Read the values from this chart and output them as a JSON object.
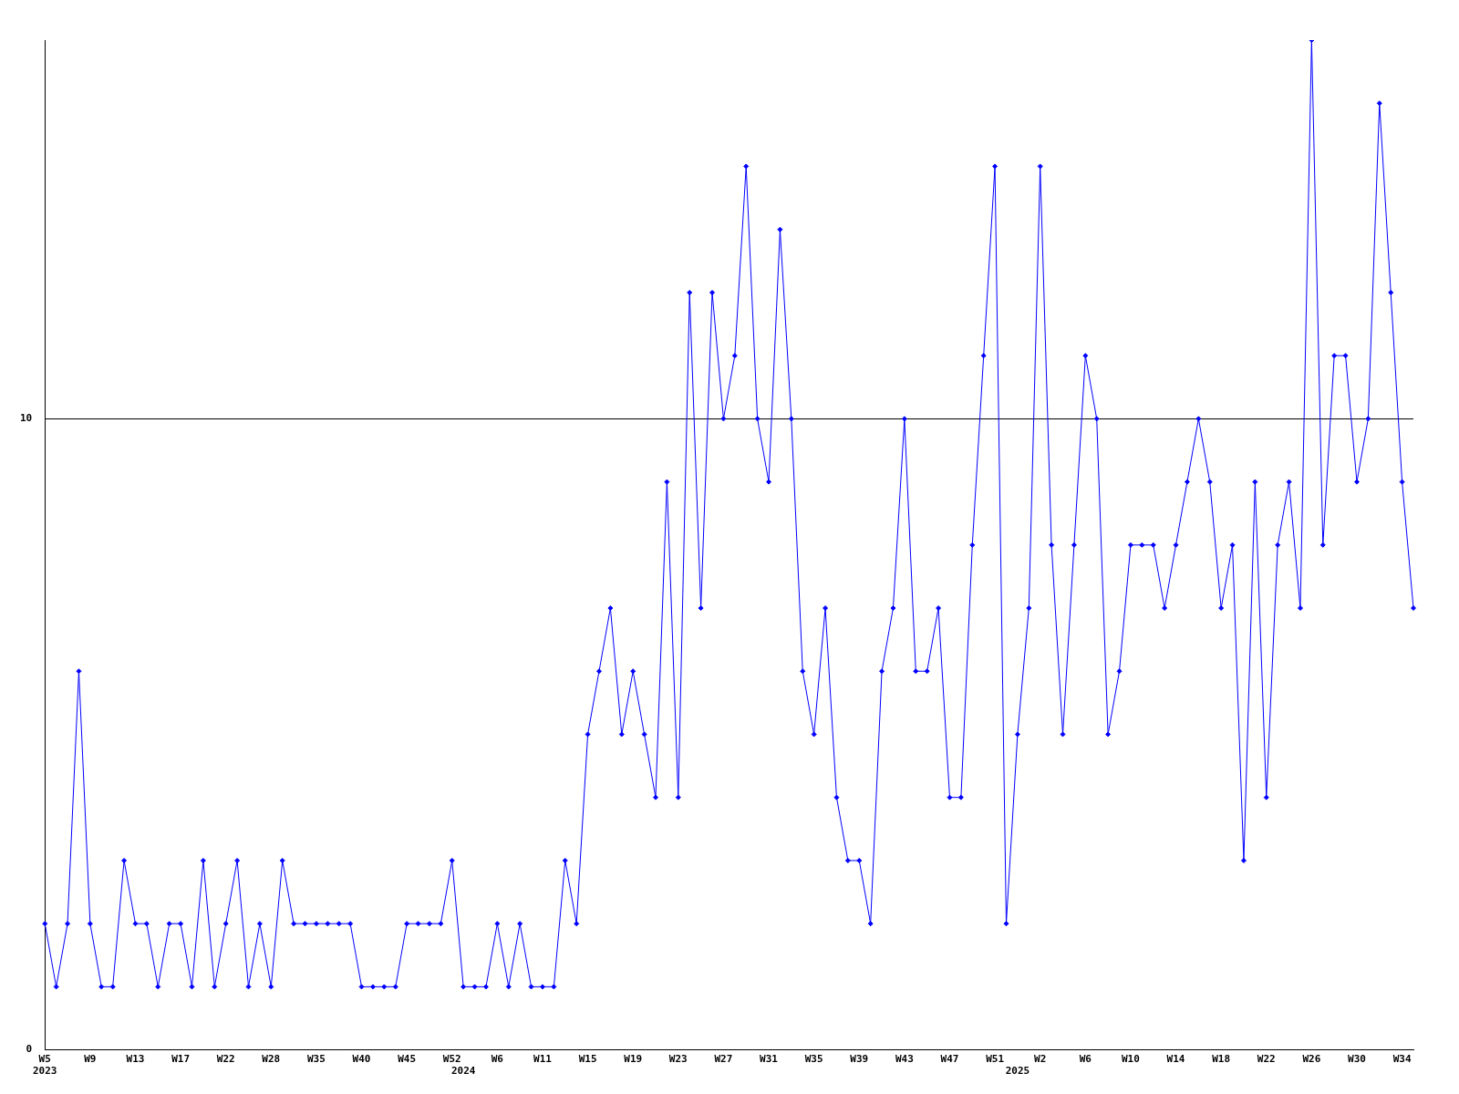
{
  "chart_data": {
    "type": "line",
    "color": "#0000ff",
    "marker": "diamond",
    "grid": "y",
    "legend": false,
    "categories": [
      "W5\n2023",
      null,
      null,
      null,
      "W9",
      null,
      null,
      null,
      "W13",
      null,
      null,
      null,
      "W17",
      null,
      null,
      null,
      "W22",
      null,
      null,
      null,
      "W28",
      null,
      null,
      null,
      "W35",
      null,
      null,
      null,
      "W40",
      null,
      null,
      null,
      "W45",
      null,
      null,
      null,
      "W52",
      "\n2024",
      null,
      null,
      "W6",
      null,
      null,
      null,
      "W11",
      null,
      null,
      null,
      "W15",
      null,
      null,
      null,
      "W19",
      null,
      null,
      null,
      "W23",
      null,
      null,
      null,
      "W27",
      null,
      null,
      null,
      "W31",
      null,
      null,
      null,
      "W35",
      null,
      null,
      null,
      "W39",
      null,
      null,
      null,
      "W43",
      null,
      null,
      null,
      "W47",
      null,
      null,
      null,
      "W51",
      null,
      "\n2025",
      null,
      "W2",
      null,
      null,
      null,
      "W6",
      null,
      null,
      null,
      "W10",
      null,
      null,
      null,
      "W14",
      null,
      null,
      null,
      "W18",
      null,
      null,
      null,
      "W22",
      null,
      null,
      null,
      "W26",
      null,
      null,
      null,
      "W30",
      null,
      null,
      null,
      "W34",
      null
    ],
    "values": [
      2,
      1,
      2,
      6,
      2,
      1,
      1,
      3,
      2,
      2,
      1,
      2,
      2,
      1,
      3,
      1,
      2,
      3,
      1,
      2,
      1,
      3,
      2,
      2,
      2,
      2,
      2,
      2,
      1,
      1,
      1,
      1,
      2,
      2,
      2,
      2,
      3,
      1,
      1,
      1,
      2,
      1,
      2,
      1,
      1,
      1,
      3,
      2,
      5,
      6,
      7,
      5,
      6,
      5,
      4,
      9,
      4,
      12,
      7,
      12,
      10,
      11,
      14,
      10,
      9,
      13,
      10,
      6,
      5,
      7,
      4,
      3,
      3,
      2,
      6,
      7,
      10,
      6,
      6,
      7,
      4,
      4,
      8,
      11,
      14,
      2,
      5,
      7,
      14,
      8,
      5,
      8,
      11,
      10,
      5,
      6,
      8,
      8,
      8,
      7,
      8,
      9,
      10,
      9,
      7,
      8,
      3,
      9,
      4,
      8,
      9,
      7,
      16,
      8,
      11,
      11,
      9,
      10,
      15,
      12,
      9,
      7
    ],
    "ylim": [
      0,
      16
    ],
    "yticks": [
      0,
      10
    ]
  }
}
